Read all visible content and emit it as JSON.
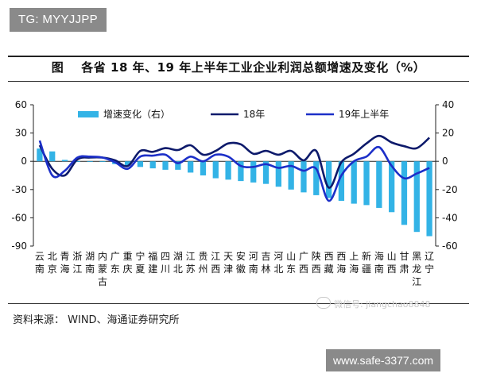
{
  "tag": "TG: MYYJJPP",
  "title": {
    "fig": "图",
    "text": "各省 18 年、19 年上半年工业企业利润总额增速及变化（%）"
  },
  "source": "资料来源：  WIND、海通证券研究所",
  "watermark": "微信号: jiangchao8848",
  "banner": "www.safe-3377.com",
  "colors": {
    "bar": "#33b3e6",
    "line18": "#0d1a6b",
    "line19": "#1c2fc8",
    "axis": "#222222"
  },
  "chart_data": {
    "type": "bar+line",
    "categories": [
      "云南",
      "北京",
      "青海",
      "浙江",
      "湖南",
      "内蒙古",
      "广东",
      "重庆",
      "宁夏",
      "福建",
      "四川",
      "湖北",
      "江苏",
      "贵州",
      "江西",
      "天津",
      "安徽",
      "河南",
      "吉林",
      "河北",
      "山东",
      "广西",
      "陕西",
      "西藏",
      "西海",
      "上海",
      "新疆",
      "海南",
      "山西",
      "甘肃",
      "黑龙江",
      "辽宁"
    ],
    "category_labels": [
      [
        "云",
        "南"
      ],
      [
        "北",
        "京"
      ],
      [
        "青",
        "海"
      ],
      [
        "浙",
        "江"
      ],
      [
        "湖",
        "南"
      ],
      [
        "内",
        "蒙",
        "古"
      ],
      [
        "广",
        "东"
      ],
      [
        "重",
        "庆"
      ],
      [
        "宁",
        "夏"
      ],
      [
        "福",
        "建"
      ],
      [
        "四",
        "川"
      ],
      [
        "湖",
        "北"
      ],
      [
        "江",
        "苏"
      ],
      [
        "贵",
        "州"
      ],
      [
        "江",
        "西"
      ],
      [
        "天",
        "津"
      ],
      [
        "安",
        "徽"
      ],
      [
        "河",
        "南"
      ],
      [
        "吉",
        "林"
      ],
      [
        "河",
        "北"
      ],
      [
        "山",
        "东"
      ],
      [
        "广",
        "西"
      ],
      [
        "陕",
        "西"
      ],
      [
        "西",
        "藏"
      ],
      [
        "西",
        "海"
      ],
      [
        "上",
        "海"
      ],
      [
        "新",
        "疆"
      ],
      [
        "海",
        "南"
      ],
      [
        "山",
        "西"
      ],
      [
        "甘",
        "肃"
      ],
      [
        "黑",
        "龙",
        "江"
      ],
      [
        "辽",
        "宁"
      ]
    ],
    "series": [
      {
        "name": "增速变化（右）",
        "kind": "bar",
        "axis": "right",
        "values": [
          9,
          7,
          1,
          0,
          0,
          0,
          -2,
          -3,
          -4,
          -5,
          -6,
          -6,
          -8,
          -10,
          -12,
          -13,
          -14,
          -15,
          -16,
          -18,
          -20,
          -22,
          -24,
          -26,
          -28,
          -30,
          -31,
          -33,
          -36,
          -45,
          -50,
          -53
        ]
      },
      {
        "name": "18年",
        "kind": "line",
        "axis": "left",
        "values": [
          17,
          -8,
          -15,
          2,
          4,
          4,
          1,
          -5,
          11,
          10,
          14,
          12,
          17,
          7,
          11,
          19,
          18,
          8,
          11,
          7,
          11,
          1,
          11,
          -28,
          -1,
          8,
          19,
          27,
          20,
          16,
          14,
          25
        ]
      },
      {
        "name": "19年上半年",
        "kind": "line",
        "axis": "left",
        "values": [
          22,
          -15,
          -10,
          4,
          5,
          4,
          -1,
          -8,
          5,
          6,
          7,
          -2,
          5,
          0,
          7,
          5,
          -5,
          -6,
          -3,
          -7,
          -5,
          -10,
          -8,
          -42,
          -15,
          0,
          5,
          15,
          -5,
          -18,
          -13,
          -7
        ]
      }
    ],
    "y_left": {
      "min": -90,
      "max": 60,
      "ticks": [
        60,
        30,
        0,
        -30,
        -60,
        -90
      ]
    },
    "y_right": {
      "min": -60,
      "max": 40,
      "ticks": [
        40,
        20,
        0,
        -20,
        -40,
        -60
      ]
    },
    "legend": {
      "position": "top"
    }
  }
}
